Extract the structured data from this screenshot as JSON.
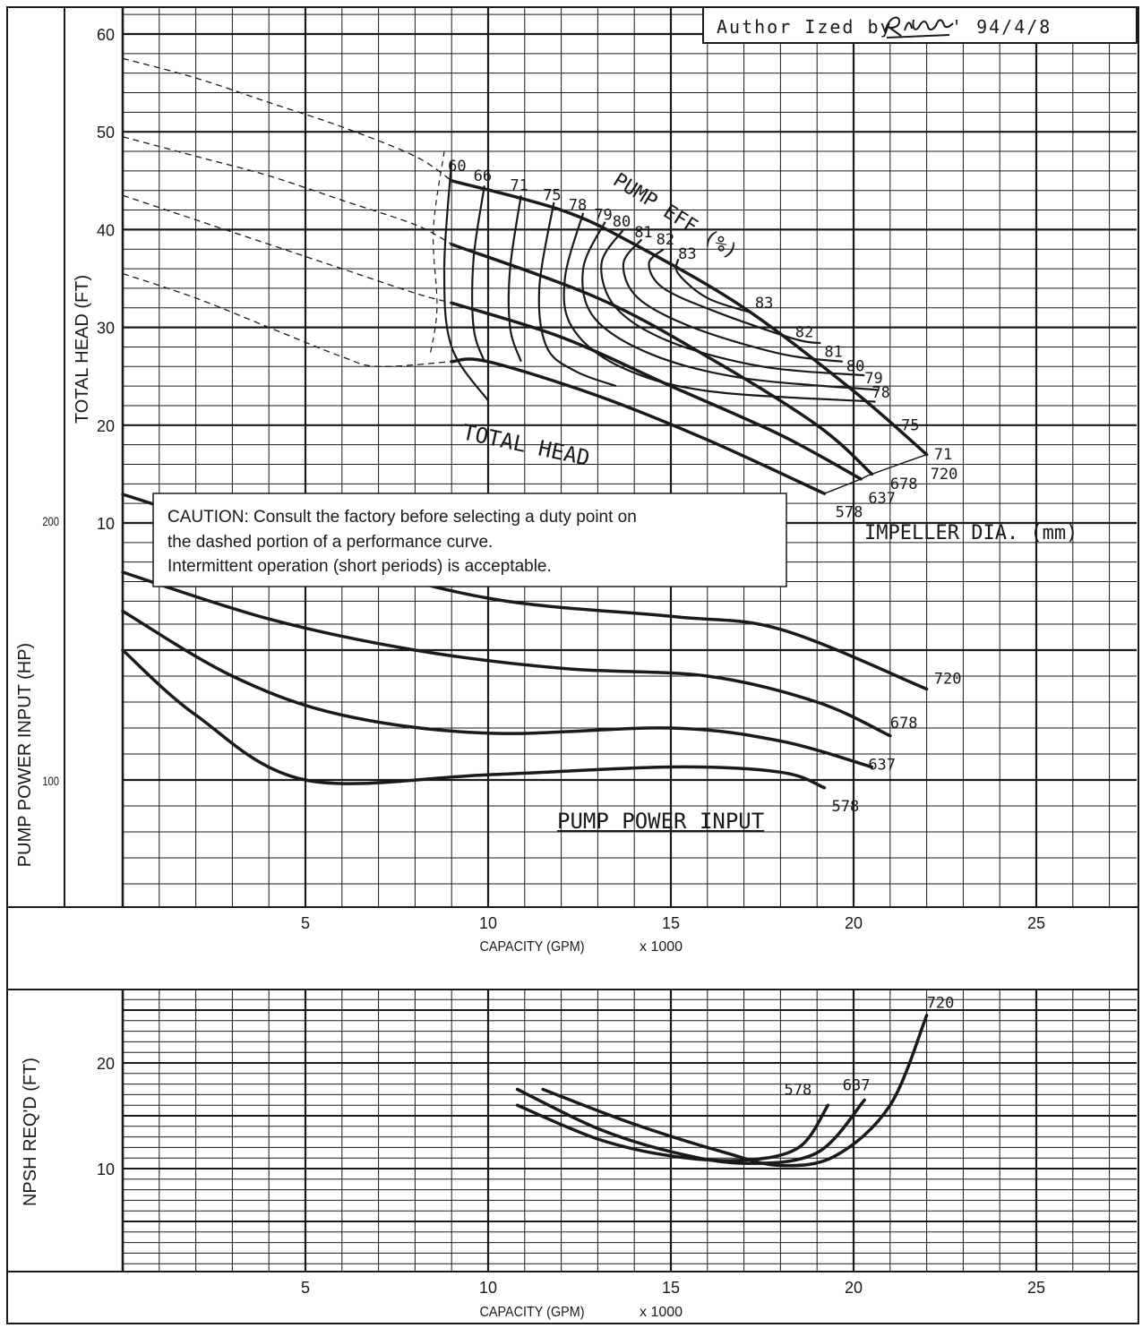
{
  "colors": {
    "ink": "#1a1a1a",
    "grid": "#1a1a1a",
    "background": "#ffffff"
  },
  "header": {
    "authorized_prefix": "Author Ized by",
    "date": "' 94/4/8",
    "signature": "R. Nakamura"
  },
  "caution": {
    "line1": "CAUTION: Consult the factory before selecting a duty point on",
    "line2": "the dashed portion of a performance curve.",
    "line3": "Intermittent operation (short periods) is acceptable."
  },
  "chart_data": [
    {
      "type": "line",
      "panel": "head",
      "ylabel": "TOTAL HEAD (FT)",
      "xlabel": "CAPACITY (GPM)",
      "xlabel_unit": "x 1000",
      "xlim": [
        0,
        28
      ],
      "ylim": [
        0,
        62
      ],
      "yticks": [
        10,
        20,
        30,
        40,
        50,
        60
      ],
      "xticks": [
        5,
        10,
        15,
        20,
        25
      ],
      "curve_label": "TOTAL HEAD",
      "efficiency_label": "PUMP EFF (%)",
      "diameter_label": "IMPELLER DIA. (mm)",
      "series": [
        {
          "name": "720",
          "dashed": [
            [
              0,
              57.5
            ],
            [
              2,
              55.5
            ],
            [
              4,
              53
            ],
            [
              6,
              50.5
            ],
            [
              8,
              47.5
            ],
            [
              9,
              45
            ]
          ],
          "solid": [
            [
              9,
              45
            ],
            [
              12,
              42
            ],
            [
              14,
              38.5
            ],
            [
              17,
              32
            ],
            [
              20,
              23.5
            ],
            [
              22,
              17
            ]
          ]
        },
        {
          "name": "678",
          "dashed": [
            [
              0,
              49.5
            ],
            [
              2,
              47.5
            ],
            [
              4,
              45.5
            ],
            [
              6,
              43
            ],
            [
              8,
              40.5
            ],
            [
              9,
              38.5
            ]
          ],
          "solid": [
            [
              9,
              38.5
            ],
            [
              13,
              33
            ],
            [
              16,
              27
            ],
            [
              19,
              20
            ],
            [
              20.5,
              15
            ]
          ]
        },
        {
          "name": "637",
          "dashed": [
            [
              0,
              43.5
            ],
            [
              2,
              41
            ],
            [
              4,
              38.5
            ],
            [
              6,
              36
            ],
            [
              8,
              33.5
            ],
            [
              9,
              32.5
            ]
          ],
          "solid": [
            [
              9,
              32.5
            ],
            [
              12,
              29
            ],
            [
              15,
              24
            ],
            [
              18,
              19
            ],
            [
              20.2,
              14.5
            ]
          ]
        },
        {
          "name": "578",
          "dashed": [
            [
              0,
              35.5
            ],
            [
              2,
              33
            ],
            [
              4,
              30
            ],
            [
              6,
              27
            ],
            [
              7,
              26
            ],
            [
              9,
              26.5
            ]
          ],
          "solid": [
            [
              9,
              26.5
            ],
            [
              10,
              26.5
            ],
            [
              13,
              23
            ],
            [
              16,
              18.5
            ],
            [
              19.2,
              13
            ]
          ]
        }
      ],
      "efficiency_labels": [
        {
          "text": "60",
          "x": 8.9,
          "y": 46
        },
        {
          "text": "66",
          "x": 9.6,
          "y": 45
        },
        {
          "text": "71",
          "x": 10.6,
          "y": 44
        },
        {
          "text": "75",
          "x": 11.5,
          "y": 43
        },
        {
          "text": "78",
          "x": 12.2,
          "y": 42
        },
        {
          "text": "79",
          "x": 12.9,
          "y": 41
        },
        {
          "text": "80",
          "x": 13.4,
          "y": 40.3
        },
        {
          "text": "81",
          "x": 14.0,
          "y": 39.2
        },
        {
          "text": "82",
          "x": 14.6,
          "y": 38.5
        },
        {
          "text": "83",
          "x": 15.2,
          "y": 37
        },
        {
          "text": "83",
          "x": 17.3,
          "y": 32
        },
        {
          "text": "82",
          "x": 18.4,
          "y": 29
        },
        {
          "text": "81",
          "x": 19.2,
          "y": 27
        },
        {
          "text": "80",
          "x": 19.8,
          "y": 25.5
        },
        {
          "text": "79",
          "x": 20.3,
          "y": 24.3
        },
        {
          "text": "78",
          "x": 20.5,
          "y": 22.8
        },
        {
          "text": "75",
          "x": 21.3,
          "y": 19.5
        },
        {
          "text": "71",
          "x": 22.2,
          "y": 16.5
        }
      ],
      "end_labels": [
        {
          "text": "720",
          "x": 22.1,
          "y": 14.5
        },
        {
          "text": "678",
          "x": 21.0,
          "y": 13.5
        },
        {
          "text": "637",
          "x": 20.4,
          "y": 12
        },
        {
          "text": "578",
          "x": 19.5,
          "y": 10.6
        }
      ]
    },
    {
      "type": "line",
      "panel": "power",
      "ylabel": "PUMP POWER INPUT (HP)",
      "yticks": [
        100,
        200
      ],
      "curve_label": "PUMP POWER INPUT",
      "series": [
        {
          "name": "720",
          "points": [
            [
              0,
              210
            ],
            [
              5,
              188
            ],
            [
              10,
              170
            ],
            [
              15,
              163
            ],
            [
              18,
              158
            ],
            [
              22,
              135
            ]
          ]
        },
        {
          "name": "678",
          "points": [
            [
              0,
              180
            ],
            [
              4,
              162
            ],
            [
              8,
              150
            ],
            [
              12,
              143
            ],
            [
              16,
              140
            ],
            [
              19,
              130
            ],
            [
              21,
              117
            ]
          ]
        },
        {
          "name": "637",
          "points": [
            [
              0,
              165
            ],
            [
              3,
              140
            ],
            [
              6,
              125
            ],
            [
              10,
              118
            ],
            [
              15,
              120
            ],
            [
              18,
              115
            ],
            [
              20.5,
              105
            ]
          ]
        },
        {
          "name": "578",
          "points": [
            [
              0,
              150
            ],
            [
              2,
              125
            ],
            [
              5,
              100
            ],
            [
              10,
              102
            ],
            [
              15,
              105
            ],
            [
              18,
              103
            ],
            [
              19.2,
              97
            ]
          ]
        }
      ],
      "end_labels": [
        {
          "text": "720",
          "x": 22.2,
          "y": 137
        },
        {
          "text": "678",
          "x": 21.0,
          "y": 120
        },
        {
          "text": "637",
          "x": 20.4,
          "y": 104
        },
        {
          "text": "578",
          "x": 19.4,
          "y": 88
        }
      ]
    },
    {
      "type": "line",
      "panel": "npsh",
      "ylabel": "NPSH REQ'D (FT)",
      "xlabel": "CAPACITY (GPM)",
      "xlabel_unit": "x 1000",
      "xlim": [
        0,
        28
      ],
      "ylim": [
        0,
        27
      ],
      "yticks": [
        10,
        20
      ],
      "xticks": [
        5,
        10,
        15,
        20,
        25
      ],
      "series": [
        {
          "name": "720",
          "points": [
            [
              11.5,
              17.5
            ],
            [
              14,
              14.2
            ],
            [
              16.5,
              11.5
            ],
            [
              18,
              10.3
            ],
            [
              19.5,
              11.2
            ],
            [
              21,
              16
            ],
            [
              22,
              24.5
            ]
          ]
        },
        {
          "name": "637",
          "points": [
            [
              10.8,
              17.5
            ],
            [
              13,
              13.8
            ],
            [
              15,
              11.6
            ],
            [
              17,
              10.5
            ],
            [
              19,
              11.5
            ],
            [
              20.3,
              16.5
            ]
          ]
        },
        {
          "name": "578",
          "points": [
            [
              10.8,
              16
            ],
            [
              13,
              12.8
            ],
            [
              15,
              11.2
            ],
            [
              17,
              10.8
            ],
            [
              18.5,
              12
            ],
            [
              19.3,
              16
            ]
          ]
        }
      ],
      "end_labels": [
        {
          "text": "720",
          "x": 22.0,
          "y": 25.2
        },
        {
          "text": "637",
          "x": 19.7,
          "y": 17.4
        },
        {
          "text": "578",
          "x": 18.1,
          "y": 17.0
        }
      ]
    }
  ]
}
